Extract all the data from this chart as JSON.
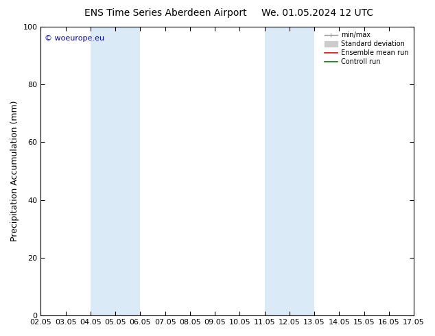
{
  "title1": "ENS Time Series Aberdeen Airport",
  "title2": "We. 01.05.2024 12 UTC",
  "ylabel": "Precipitation Accumulation (mm)",
  "watermark": "© woeurope.eu",
  "ylim": [
    0,
    100
  ],
  "xlim": [
    0,
    15
  ],
  "xtick_labels": [
    "02.05",
    "03.05",
    "04.05",
    "05.05",
    "06.05",
    "07.05",
    "08.05",
    "09.05",
    "10.05",
    "11.05",
    "12.05",
    "13.05",
    "14.05",
    "15.05",
    "16.05",
    "17.05"
  ],
  "ytick_vals": [
    0,
    20,
    40,
    60,
    80,
    100
  ],
  "shaded_bands": [
    {
      "x_start": 2,
      "x_end": 4,
      "color": "#daeaf7"
    },
    {
      "x_start": 9,
      "x_end": 11,
      "color": "#daeaf7"
    }
  ],
  "legend_entries": [
    {
      "label": "min/max",
      "color": "#999999",
      "linestyle": "-",
      "linewidth": 1.0
    },
    {
      "label": "Standard deviation",
      "color": "#cccccc",
      "linestyle": "-",
      "linewidth": 5
    },
    {
      "label": "Ensemble mean run",
      "color": "#dd0000",
      "linestyle": "-",
      "linewidth": 1.2
    },
    {
      "label": "Controll run",
      "color": "#007700",
      "linestyle": "-",
      "linewidth": 1.2
    }
  ],
  "background_color": "#ffffff",
  "plot_bg_color": "#ffffff",
  "title_fontsize": 10,
  "axis_label_fontsize": 9,
  "tick_fontsize": 8,
  "watermark_color": "#0000cc",
  "watermark_fontsize": 8
}
